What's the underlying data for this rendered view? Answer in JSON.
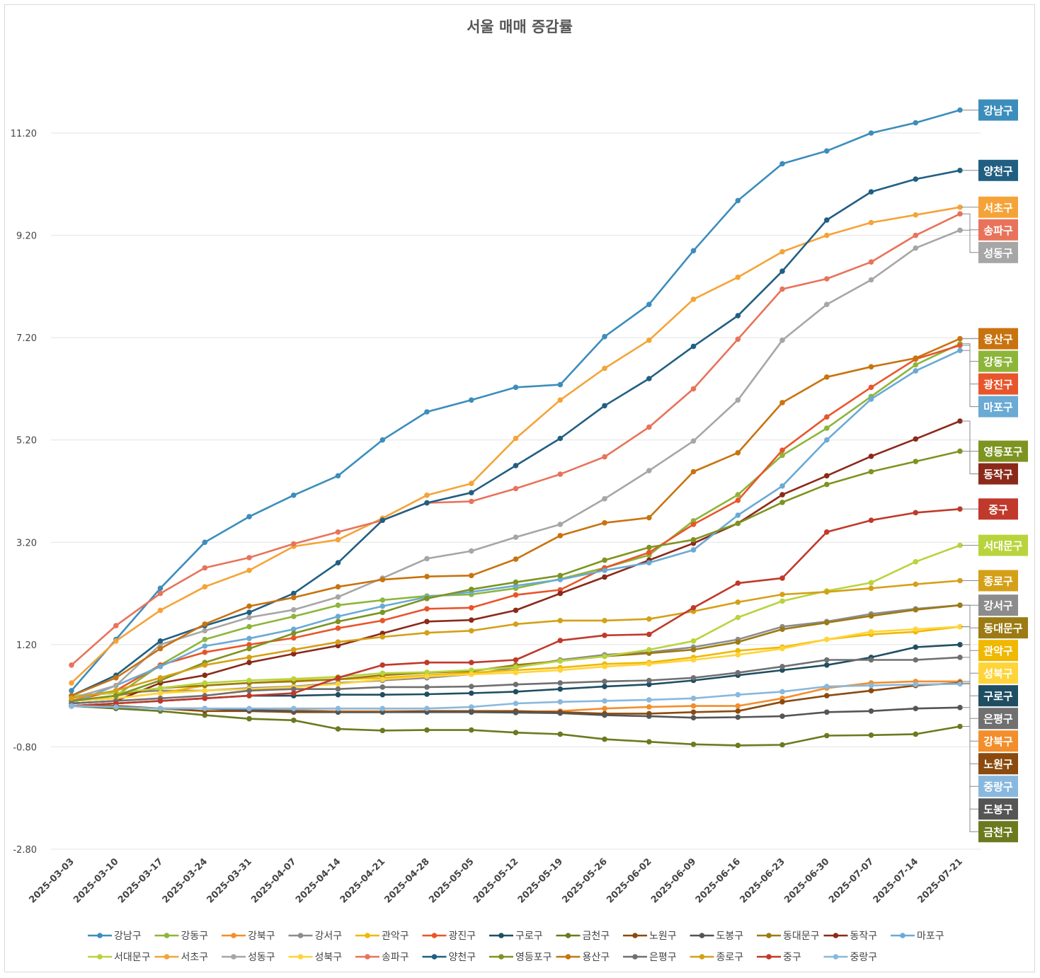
{
  "chart_data": {
    "type": "line",
    "title": "서울 매매 증감률",
    "xlabel": "",
    "ylabel": "",
    "ylim": [
      -2.8,
      11.2
    ],
    "y_ticks": [
      "11.20",
      "9.20",
      "7.20",
      "5.20",
      "3.20",
      "1.20",
      "-0.80",
      "-2.80"
    ],
    "y_tick_values": [
      11.2,
      9.2,
      7.2,
      5.2,
      3.2,
      1.2,
      -0.8,
      -2.8
    ],
    "grid": true,
    "legend_position": "bottom",
    "x": [
      "2025-03-03",
      "2025-03-10",
      "2025-03-17",
      "2025-03-24",
      "2025-03-31",
      "2025-04-07",
      "2025-04-14",
      "2025-04-21",
      "2025-04-28",
      "2025-05-05",
      "2025-05-12",
      "2025-05-19",
      "2025-05-26",
      "2025-06-02",
      "2025-06-09",
      "2025-06-16",
      "2025-06-23",
      "2025-06-30",
      "2025-07-07",
      "2025-07-14",
      "2025-07-21"
    ],
    "series": [
      {
        "name": "강남구",
        "color": "#3c8dbc",
        "values": [
          0.3,
          1.3,
          2.3,
          3.2,
          3.7,
          4.12,
          4.5,
          5.2,
          5.75,
          5.98,
          6.23,
          6.28,
          7.22,
          7.85,
          8.9,
          9.88,
          10.6,
          10.85,
          11.2,
          11.4,
          11.65
        ]
      },
      {
        "name": "강동구",
        "color": "#8db53a",
        "values": [
          0.1,
          0.2,
          0.8,
          1.3,
          1.55,
          1.75,
          1.97,
          2.07,
          2.15,
          2.18,
          2.3,
          2.48,
          2.7,
          2.95,
          3.62,
          4.13,
          4.9,
          5.43,
          6.05,
          6.67,
          7.08
        ]
      },
      {
        "name": "강북구",
        "color": "#f28e2b",
        "values": [
          0.0,
          0.0,
          -0.05,
          -0.05,
          -0.08,
          -0.08,
          -0.1,
          -0.1,
          -0.1,
          -0.12,
          -0.12,
          -0.1,
          -0.05,
          -0.02,
          0.0,
          0.0,
          0.15,
          0.35,
          0.45,
          0.48,
          0.48
        ]
      },
      {
        "name": "강서구",
        "color": "#8c8c8c",
        "values": [
          0.2,
          0.25,
          0.3,
          0.3,
          0.35,
          0.38,
          0.45,
          0.5,
          0.55,
          0.62,
          0.75,
          0.9,
          1.0,
          1.05,
          1.15,
          1.3,
          1.55,
          1.65,
          1.8,
          1.9,
          1.97
        ]
      },
      {
        "name": "관악구",
        "color": "#f0b800",
        "values": [
          0.1,
          0.15,
          0.25,
          0.4,
          0.45,
          0.5,
          0.52,
          0.55,
          0.6,
          0.65,
          0.7,
          0.75,
          0.82,
          0.85,
          0.95,
          1.08,
          1.15,
          1.3,
          1.4,
          1.45,
          1.55
        ]
      },
      {
        "name": "광진구",
        "color": "#e8552a",
        "values": [
          0.1,
          0.3,
          0.8,
          1.05,
          1.2,
          1.33,
          1.52,
          1.67,
          1.9,
          1.92,
          2.17,
          2.27,
          2.7,
          3.0,
          3.55,
          4.02,
          5.0,
          5.65,
          6.23,
          6.78,
          7.05
        ]
      },
      {
        "name": "구로구",
        "color": "#1f4e63",
        "values": [
          0.0,
          0.05,
          0.1,
          0.15,
          0.2,
          0.2,
          0.22,
          0.22,
          0.23,
          0.25,
          0.28,
          0.33,
          0.38,
          0.42,
          0.5,
          0.6,
          0.7,
          0.8,
          0.95,
          1.15,
          1.2
        ]
      },
      {
        "name": "금천구",
        "color": "#6b7a1e",
        "values": [
          0.0,
          -0.05,
          -0.1,
          -0.18,
          -0.25,
          -0.28,
          -0.45,
          -0.48,
          -0.47,
          -0.47,
          -0.52,
          -0.55,
          -0.65,
          -0.7,
          -0.75,
          -0.77,
          -0.76,
          -0.58,
          -0.57,
          -0.55,
          -0.4
        ]
      },
      {
        "name": "노원구",
        "color": "#8b4a0e",
        "values": [
          0.0,
          0.0,
          -0.05,
          -0.1,
          -0.1,
          -0.12,
          -0.12,
          -0.12,
          -0.1,
          -0.1,
          -0.1,
          -0.12,
          -0.15,
          -0.15,
          -0.12,
          -0.1,
          0.08,
          0.2,
          0.3,
          0.4,
          0.45
        ]
      },
      {
        "name": "도봉구",
        "color": "#555555",
        "values": [
          0.0,
          -0.02,
          -0.05,
          -0.05,
          -0.08,
          -0.1,
          -0.12,
          -0.12,
          -0.12,
          -0.12,
          -0.13,
          -0.14,
          -0.18,
          -0.2,
          -0.23,
          -0.22,
          -0.2,
          -0.12,
          -0.1,
          -0.05,
          -0.03
        ]
      },
      {
        "name": "동대문구",
        "color": "#9c7a14",
        "values": [
          0.1,
          0.2,
          0.35,
          0.4,
          0.45,
          0.48,
          0.52,
          0.6,
          0.65,
          0.68,
          0.8,
          0.88,
          0.97,
          1.03,
          1.1,
          1.25,
          1.5,
          1.63,
          1.76,
          1.88,
          1.97
        ]
      },
      {
        "name": "동작구",
        "color": "#8b2a1a",
        "values": [
          0.05,
          0.1,
          0.45,
          0.6,
          0.85,
          1.02,
          1.18,
          1.42,
          1.65,
          1.68,
          1.87,
          2.2,
          2.52,
          2.85,
          3.18,
          3.57,
          4.13,
          4.5,
          4.88,
          5.22,
          5.57
        ]
      },
      {
        "name": "마포구",
        "color": "#6aaad4",
        "values": [
          0.05,
          0.4,
          0.77,
          1.17,
          1.32,
          1.5,
          1.75,
          1.95,
          2.13,
          2.23,
          2.35,
          2.47,
          2.65,
          2.8,
          3.05,
          3.73,
          4.3,
          5.2,
          6.0,
          6.55,
          6.95
        ]
      },
      {
        "name": "서대문구",
        "color": "#b8d43c",
        "values": [
          0.2,
          0.25,
          0.35,
          0.45,
          0.5,
          0.53,
          0.57,
          0.64,
          0.66,
          0.7,
          0.76,
          0.88,
          0.97,
          1.1,
          1.27,
          1.73,
          2.05,
          2.25,
          2.41,
          2.82,
          3.14
        ]
      },
      {
        "name": "서초구",
        "color": "#f5a338",
        "values": [
          0.45,
          1.27,
          1.87,
          2.33,
          2.65,
          3.12,
          3.25,
          3.67,
          4.12,
          4.35,
          5.23,
          5.98,
          6.6,
          7.15,
          7.95,
          8.38,
          8.88,
          9.2,
          9.45,
          9.6,
          9.75
        ]
      },
      {
        "name": "성동구",
        "color": "#a6a6a6",
        "values": [
          0.15,
          0.4,
          1.2,
          1.47,
          1.73,
          1.88,
          2.13,
          2.5,
          2.88,
          3.03,
          3.3,
          3.55,
          4.05,
          4.6,
          5.18,
          5.98,
          7.15,
          7.85,
          8.33,
          8.95,
          9.3
        ]
      },
      {
        "name": "성북구",
        "color": "#ffd43b",
        "values": [
          0.1,
          0.15,
          0.25,
          0.3,
          0.33,
          0.37,
          0.43,
          0.52,
          0.58,
          0.62,
          0.65,
          0.7,
          0.77,
          0.82,
          0.9,
          1.0,
          1.12,
          1.3,
          1.45,
          1.5,
          1.55
        ]
      },
      {
        "name": "송파구",
        "color": "#e8735a",
        "values": [
          0.8,
          1.57,
          2.2,
          2.7,
          2.9,
          3.17,
          3.4,
          3.63,
          3.97,
          4.0,
          4.25,
          4.53,
          4.87,
          5.45,
          6.2,
          7.17,
          8.15,
          8.35,
          8.68,
          9.2,
          9.62
        ]
      },
      {
        "name": "양천구",
        "color": "#215f82",
        "values": [
          0.2,
          0.6,
          1.27,
          1.57,
          1.83,
          2.2,
          2.8,
          3.63,
          3.97,
          4.17,
          4.7,
          5.23,
          5.87,
          6.4,
          7.03,
          7.63,
          8.5,
          9.5,
          10.05,
          10.3,
          10.47
        ]
      },
      {
        "name": "영등포구",
        "color": "#7d9420",
        "values": [
          0.1,
          0.2,
          0.5,
          0.85,
          1.12,
          1.42,
          1.65,
          1.83,
          2.1,
          2.28,
          2.42,
          2.55,
          2.85,
          3.1,
          3.25,
          3.57,
          3.98,
          4.33,
          4.58,
          4.78,
          4.98
        ]
      },
      {
        "name": "용산구",
        "color": "#c8730e",
        "values": [
          0.2,
          0.55,
          1.12,
          1.6,
          1.95,
          2.12,
          2.33,
          2.47,
          2.53,
          2.55,
          2.87,
          3.33,
          3.58,
          3.68,
          4.58,
          4.95,
          5.93,
          6.43,
          6.63,
          6.8,
          7.18
        ]
      },
      {
        "name": "은평구",
        "color": "#707070",
        "values": [
          0.05,
          0.1,
          0.15,
          0.2,
          0.3,
          0.33,
          0.33,
          0.37,
          0.37,
          0.38,
          0.42,
          0.45,
          0.48,
          0.5,
          0.55,
          0.65,
          0.77,
          0.9,
          0.9,
          0.9,
          0.95
        ]
      },
      {
        "name": "종로구",
        "color": "#d4a017",
        "values": [
          0.15,
          0.3,
          0.55,
          0.8,
          0.95,
          1.1,
          1.25,
          1.35,
          1.43,
          1.47,
          1.6,
          1.67,
          1.67,
          1.7,
          1.85,
          2.03,
          2.18,
          2.23,
          2.3,
          2.38,
          2.45
        ]
      },
      {
        "name": "중구",
        "color": "#c0392b",
        "values": [
          0.0,
          0.05,
          0.1,
          0.15,
          0.2,
          0.25,
          0.55,
          0.8,
          0.85,
          0.85,
          0.9,
          1.28,
          1.38,
          1.4,
          1.92,
          2.4,
          2.5,
          3.4,
          3.63,
          3.78,
          3.85
        ]
      },
      {
        "name": "중랑구",
        "color": "#89b8de",
        "values": [
          0.0,
          -0.02,
          -0.05,
          -0.05,
          -0.05,
          -0.05,
          -0.05,
          -0.05,
          -0.05,
          -0.02,
          0.05,
          0.08,
          0.1,
          0.12,
          0.15,
          0.22,
          0.28,
          0.38,
          0.4,
          0.42,
          0.43
        ]
      }
    ],
    "end_labels": [
      {
        "name": "강남구",
        "color": "#3c8dbc"
      },
      {
        "name": "양천구",
        "color": "#215f82"
      },
      {
        "name": "서초구",
        "color": "#f5a338"
      },
      {
        "name": "송파구",
        "color": "#e8735a"
      },
      {
        "name": "성동구",
        "color": "#a6a6a6"
      },
      {
        "name": "용산구",
        "color": "#c8730e"
      },
      {
        "name": "강동구",
        "color": "#8db53a"
      },
      {
        "name": "광진구",
        "color": "#e8552a"
      },
      {
        "name": "마포구",
        "color": "#6aaad4"
      },
      {
        "name": "영등포구",
        "color": "#7d9420"
      },
      {
        "name": "동작구",
        "color": "#8b2a1a"
      },
      {
        "name": "중구",
        "color": "#c0392b"
      },
      {
        "name": "서대문구",
        "color": "#b8d43c"
      },
      {
        "name": "종로구",
        "color": "#d4a017"
      },
      {
        "name": "강서구",
        "color": "#8c8c8c"
      },
      {
        "name": "동대문구",
        "color": "#9c7a14"
      },
      {
        "name": "관악구",
        "color": "#f0b800"
      },
      {
        "name": "성북구",
        "color": "#ffd43b"
      },
      {
        "name": "구로구",
        "color": "#1f4e63"
      },
      {
        "name": "은평구",
        "color": "#707070"
      },
      {
        "name": "강북구",
        "color": "#f28e2b"
      },
      {
        "name": "노원구",
        "color": "#8b4a0e"
      },
      {
        "name": "중랑구",
        "color": "#89b8de"
      },
      {
        "name": "도봉구",
        "color": "#555555"
      },
      {
        "name": "금천구",
        "color": "#6b7a1e"
      }
    ]
  }
}
